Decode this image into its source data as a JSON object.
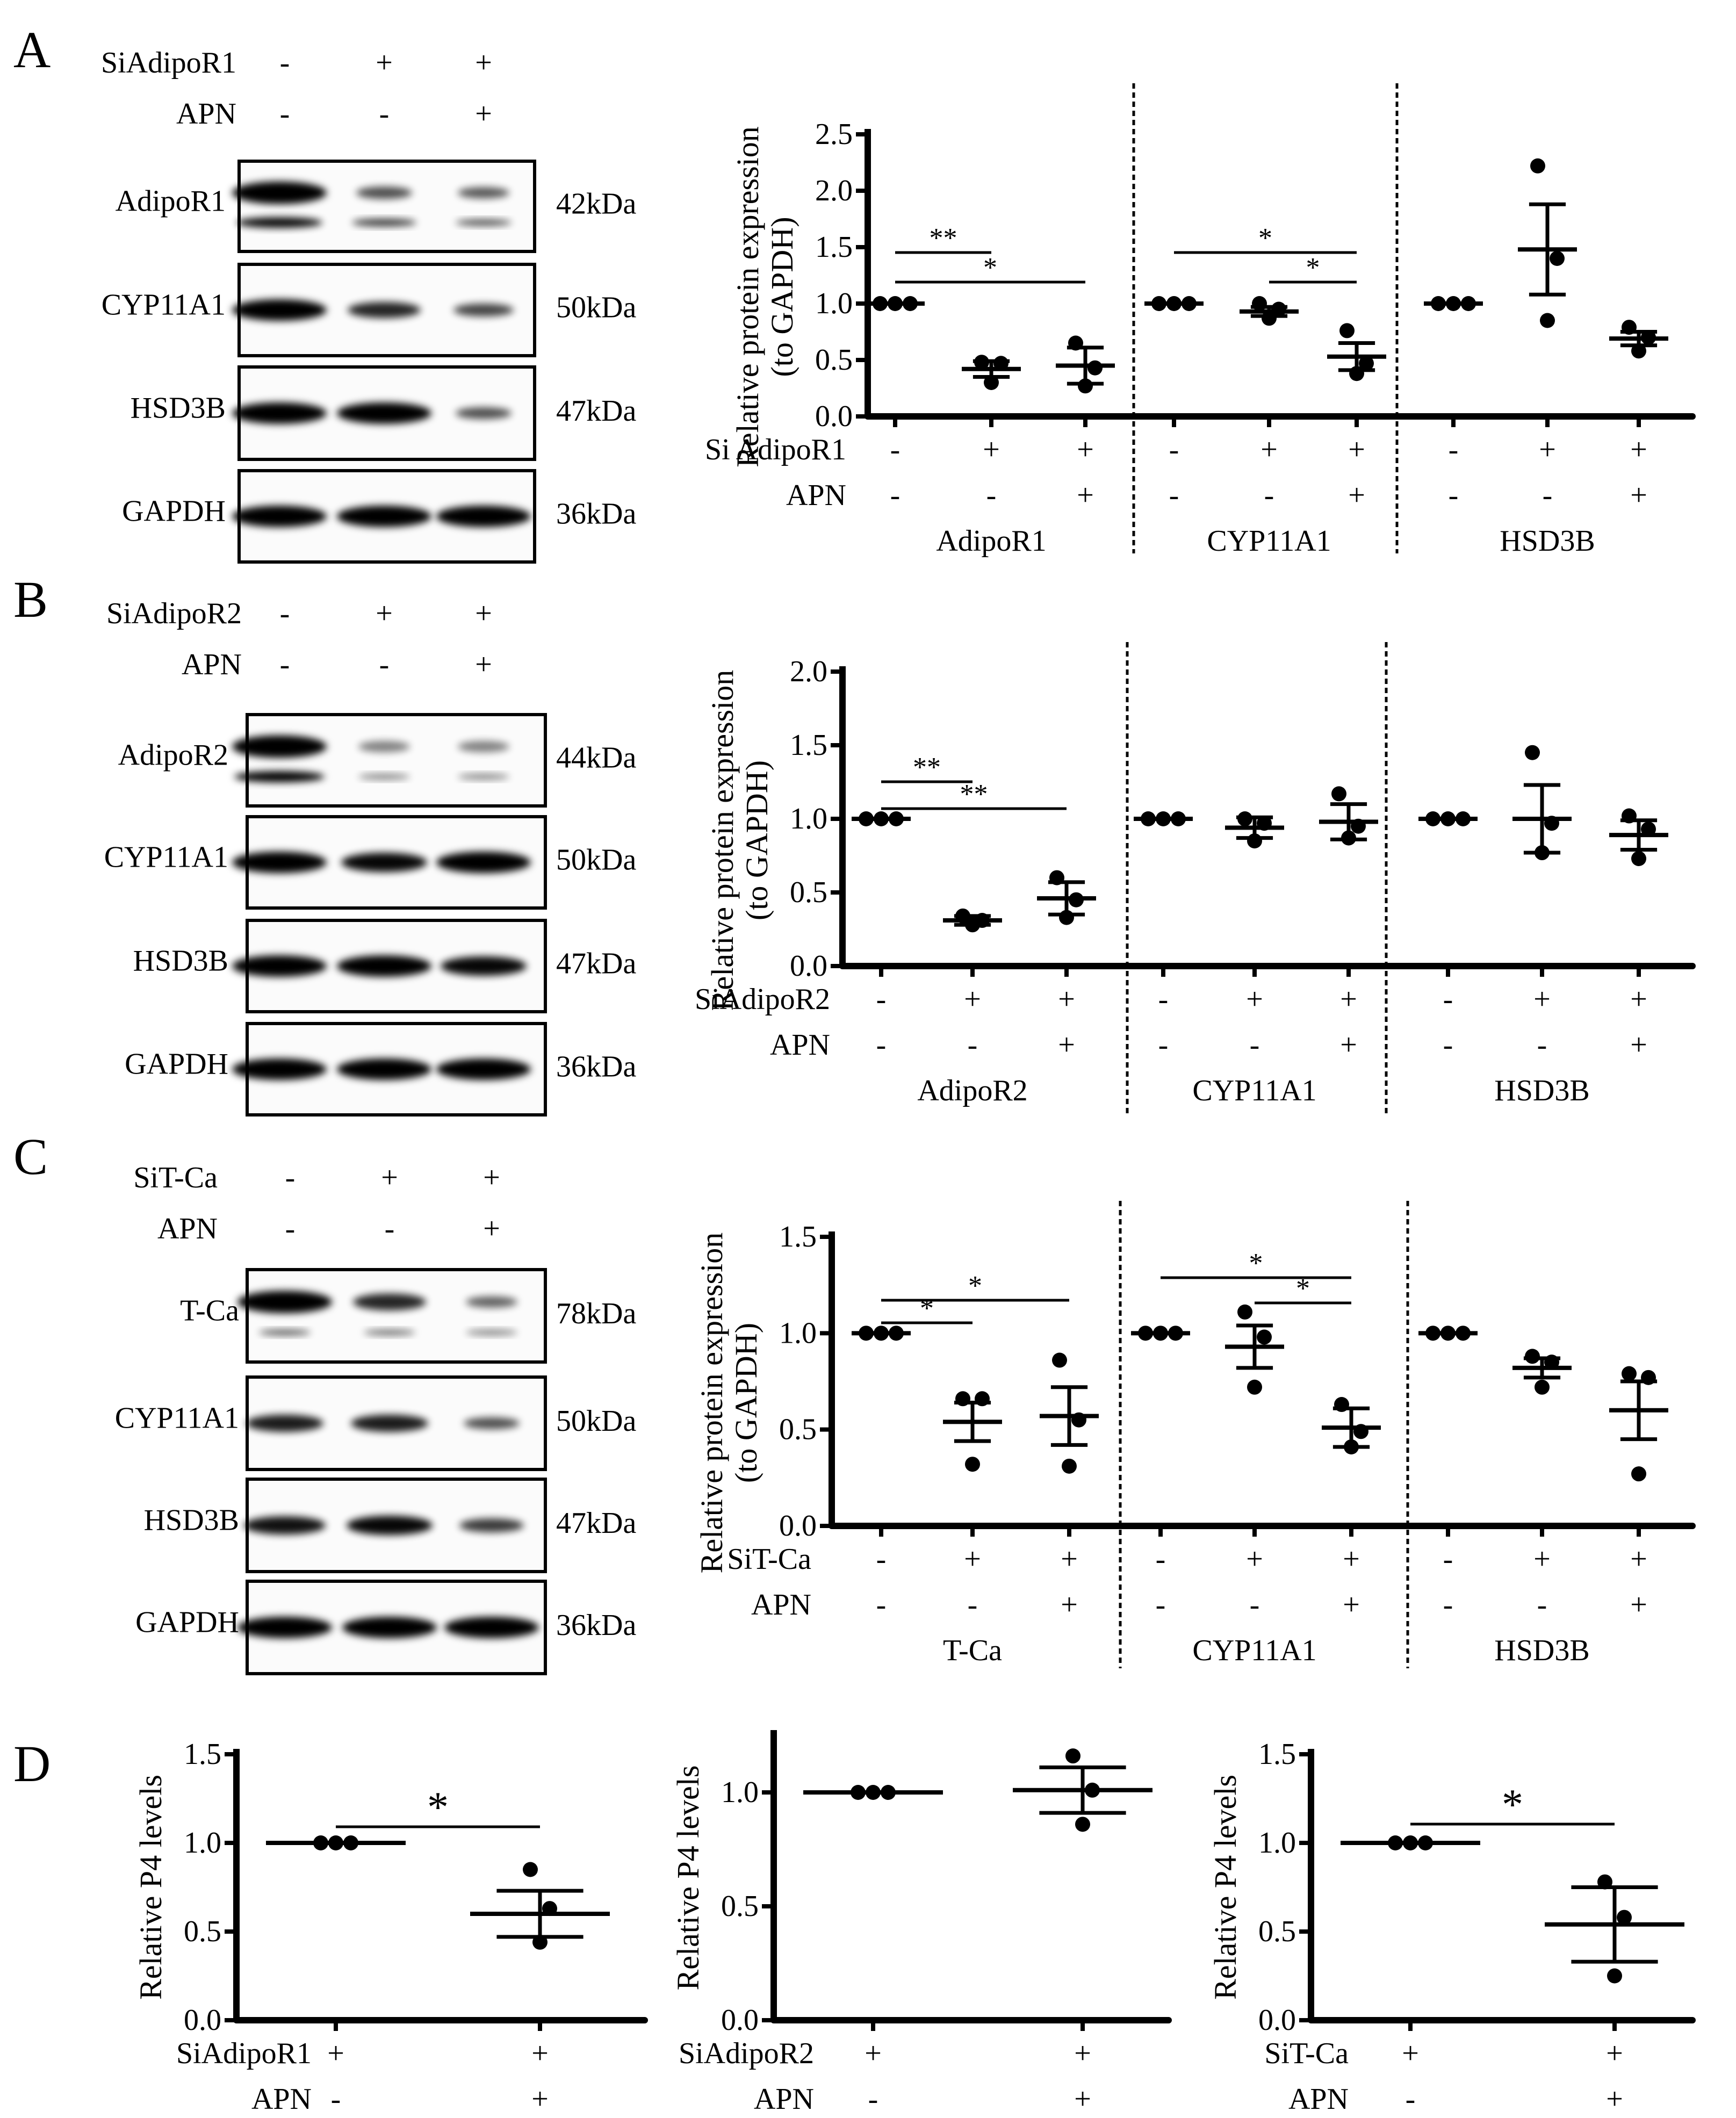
{
  "panels": {
    "A": {
      "letter": "A",
      "conditions": [
        {
          "label": "SiAdipoR1",
          "values": [
            "-",
            "+",
            "+"
          ]
        },
        {
          "label": "APN",
          "values": [
            "-",
            "-",
            "+"
          ]
        }
      ],
      "blots": [
        {
          "protein": "AdipoR1",
          "kda": "42kDa"
        },
        {
          "protein": "CYP11A1",
          "kda": "50kDa"
        },
        {
          "protein": "HSD3B",
          "kda": "47kDa"
        },
        {
          "protein": "GAPDH",
          "kda": "36kDa"
        }
      ]
    },
    "B": {
      "letter": "B",
      "conditions": [
        {
          "label": "SiAdipoR2",
          "values": [
            "-",
            "+",
            "+"
          ]
        },
        {
          "label": "APN",
          "values": [
            "-",
            "-",
            "+"
          ]
        }
      ],
      "blots": [
        {
          "protein": "AdipoR2",
          "kda": "44kDa"
        },
        {
          "protein": "CYP11A1",
          "kda": "50kDa"
        },
        {
          "protein": "HSD3B",
          "kda": "47kDa"
        },
        {
          "protein": "GAPDH",
          "kda": "36kDa"
        }
      ]
    },
    "C": {
      "letter": "C",
      "conditions": [
        {
          "label": "SiT-Ca",
          "values": [
            "-",
            "+",
            "+"
          ]
        },
        {
          "label": "APN",
          "values": [
            "-",
            "-",
            "+"
          ]
        }
      ],
      "blots": [
        {
          "protein": "T-Ca",
          "kda": "78kDa"
        },
        {
          "protein": "CYP11A1",
          "kda": "50kDa"
        },
        {
          "protein": "HSD3B",
          "kda": "47kDa"
        },
        {
          "protein": "GAPDH",
          "kda": "36kDa"
        }
      ]
    },
    "D": {
      "letter": "D"
    }
  },
  "chart_data": [
    {
      "id": "A",
      "type": "scatter",
      "ylabel": "Relative protein expression\n(to GAPDH)",
      "ylim": [
        0,
        2.5
      ],
      "yticks": [
        "0.0",
        "0.5",
        "1.0",
        "1.5",
        "2.0",
        "2.5"
      ],
      "row_labels": [
        "Si AdipoR1",
        "APN"
      ],
      "row_values": [
        [
          "-",
          "+",
          "+",
          "-",
          "+",
          "+",
          "-",
          "+",
          "+"
        ],
        [
          "-",
          "-",
          "+",
          "-",
          "-",
          "+",
          "-",
          "-",
          "+"
        ]
      ],
      "groups": [
        {
          "name": "AdipoR1",
          "means": [
            1.0,
            0.42,
            0.45
          ],
          "sem": [
            0,
            0.07,
            0.16
          ],
          "points": [
            [
              1.0,
              1.0,
              1.0
            ],
            [
              0.48,
              0.47,
              0.3
            ],
            [
              0.65,
              0.43,
              0.27
            ]
          ]
        },
        {
          "name": "CYP11A1",
          "means": [
            1.0,
            0.93,
            0.53
          ],
          "sem": [
            0,
            0.04,
            0.12
          ],
          "points": [
            [
              1.0,
              1.0,
              1.0
            ],
            [
              1.0,
              0.95,
              0.87
            ],
            [
              0.76,
              0.47,
              0.38
            ]
          ]
        },
        {
          "name": "HSD3B",
          "means": [
            1.0,
            1.48,
            0.69
          ],
          "sem": [
            0,
            0.4,
            0.06
          ],
          "points": [
            [
              1.0,
              1.0,
              1.0
            ],
            [
              2.22,
              1.4,
              0.85
            ],
            [
              0.79,
              0.7,
              0.58
            ]
          ]
        }
      ],
      "significance": [
        {
          "group": 0,
          "from": 0,
          "to": 1,
          "label": "**"
        },
        {
          "group": 0,
          "from": 0,
          "to": 2,
          "label": "*"
        },
        {
          "group": 1,
          "from": 0,
          "to": 2,
          "label": "*"
        },
        {
          "group": 1,
          "from": 1,
          "to": 2,
          "label": "*"
        }
      ]
    },
    {
      "id": "B",
      "type": "scatter",
      "ylabel": "Relative protein expression\n(to GAPDH)",
      "ylim": [
        0,
        2.0
      ],
      "yticks": [
        "0.0",
        "0.5",
        "1.0",
        "1.5",
        "2.0"
      ],
      "row_labels": [
        "SiAdipoR2",
        "APN"
      ],
      "row_values": [
        [
          "-",
          "+",
          "+",
          "-",
          "+",
          "+",
          "-",
          "+",
          "+"
        ],
        [
          "-",
          "-",
          "+",
          "-",
          "-",
          "+",
          "-",
          "-",
          "+"
        ]
      ],
      "groups": [
        {
          "name": "AdipoR2",
          "means": [
            1.0,
            0.31,
            0.46
          ],
          "sem": [
            0,
            0.03,
            0.11
          ],
          "points": [
            [
              1.0,
              1.0,
              1.0
            ],
            [
              0.34,
              0.31,
              0.28
            ],
            [
              0.6,
              0.45,
              0.33
            ]
          ]
        },
        {
          "name": "CYP11A1",
          "means": [
            1.0,
            0.94,
            0.98
          ],
          "sem": [
            0,
            0.07,
            0.12
          ],
          "points": [
            [
              1.0,
              1.0,
              1.0
            ],
            [
              1.0,
              0.97,
              0.85
            ],
            [
              1.17,
              0.95,
              0.87
            ]
          ]
        },
        {
          "name": "HSD3B",
          "means": [
            1.0,
            1.0,
            0.89
          ],
          "sem": [
            0,
            0.23,
            0.1
          ],
          "points": [
            [
              1.0,
              1.0,
              1.0
            ],
            [
              1.45,
              0.97,
              0.77
            ],
            [
              1.02,
              0.93,
              0.73
            ]
          ]
        }
      ],
      "significance": [
        {
          "group": 0,
          "from": 0,
          "to": 1,
          "label": "**"
        },
        {
          "group": 0,
          "from": 0,
          "to": 2,
          "label": "**"
        }
      ]
    },
    {
      "id": "C",
      "type": "scatter",
      "ylabel": "Relative protein expression\n(to GAPDH)",
      "ylim": [
        0,
        1.5
      ],
      "yticks": [
        "0.0",
        "0.5",
        "1.0",
        "1.5"
      ],
      "row_labels": [
        "SiT-Ca",
        "APN"
      ],
      "row_values": [
        [
          "-",
          "+",
          "+",
          "-",
          "+",
          "+",
          "-",
          "+",
          "+"
        ],
        [
          "-",
          "-",
          "+",
          "-",
          "-",
          "+",
          "-",
          "-",
          "+"
        ]
      ],
      "groups": [
        {
          "name": "T-Ca",
          "means": [
            1.0,
            0.54,
            0.57
          ],
          "sem": [
            0,
            0.1,
            0.15
          ],
          "points": [
            [
              1.0,
              1.0,
              1.0
            ],
            [
              0.66,
              0.66,
              0.32
            ],
            [
              0.86,
              0.55,
              0.31
            ]
          ]
        },
        {
          "name": "CYP11A1",
          "means": [
            1.0,
            0.93,
            0.51
          ],
          "sem": [
            0,
            0.11,
            0.1
          ],
          "points": [
            [
              1.0,
              1.0,
              1.0
            ],
            [
              1.11,
              0.98,
              0.72
            ],
            [
              0.63,
              0.49,
              0.41
            ]
          ]
        },
        {
          "name": "HSD3B",
          "means": [
            1.0,
            0.82,
            0.6
          ],
          "sem": [
            0,
            0.05,
            0.15
          ],
          "points": [
            [
              1.0,
              1.0,
              1.0
            ],
            [
              0.88,
              0.85,
              0.72
            ],
            [
              0.79,
              0.77,
              0.27
            ]
          ]
        }
      ],
      "significance": [
        {
          "group": 0,
          "from": 0,
          "to": 1,
          "label": "*"
        },
        {
          "group": 0,
          "from": 0,
          "to": 2,
          "label": "*"
        },
        {
          "group": 1,
          "from": 0,
          "to": 2,
          "label": "*"
        },
        {
          "group": 1,
          "from": 1,
          "to": 2,
          "label": "*"
        }
      ]
    },
    {
      "id": "D1",
      "type": "scatter",
      "ylabel": "Relative P4 levels",
      "ylim": [
        0,
        1.5
      ],
      "yticks": [
        "0.0",
        "0.5",
        "1.0",
        "1.5"
      ],
      "row_labels": [
        "SiAdipoR1",
        "APN"
      ],
      "row_values": [
        [
          "+",
          "+"
        ],
        [
          "-",
          "+"
        ]
      ],
      "means": [
        1.0,
        0.6
      ],
      "sem": [
        0,
        0.13
      ],
      "points": [
        [
          1.0,
          1.0,
          1.0
        ],
        [
          0.85,
          0.63,
          0.44
        ]
      ],
      "significance": [
        {
          "from": 0,
          "to": 1,
          "label": "*"
        }
      ]
    },
    {
      "id": "D2",
      "type": "scatter",
      "ylabel": "Relative P4 levels",
      "ylim": [
        0,
        1.25
      ],
      "yticks": [
        "0.0",
        "0.5",
        "1.0"
      ],
      "row_labels": [
        "SiAdipoR2",
        "APN"
      ],
      "row_values": [
        [
          "+",
          "+"
        ],
        [
          "-",
          "+"
        ]
      ],
      "means": [
        1.0,
        1.01
      ],
      "sem": [
        0,
        0.1
      ],
      "points": [
        [
          1.0,
          1.0,
          1.0
        ],
        [
          1.16,
          1.01,
          0.86
        ]
      ],
      "significance": []
    },
    {
      "id": "D3",
      "type": "scatter",
      "ylabel": "Relative P4 levels",
      "ylim": [
        0,
        1.5
      ],
      "yticks": [
        "0.0",
        "0.5",
        "1.0",
        "1.5"
      ],
      "row_labels": [
        "SiT-Ca",
        "APN"
      ],
      "row_values": [
        [
          "+",
          "+"
        ],
        [
          "-",
          "+"
        ]
      ],
      "means": [
        1.0,
        0.54
      ],
      "sem": [
        0,
        0.21
      ],
      "points": [
        [
          1.0,
          1.0,
          1.0
        ],
        [
          0.78,
          0.58,
          0.25
        ]
      ],
      "significance": [
        {
          "from": 0,
          "to": 1,
          "label": "*"
        }
      ]
    }
  ]
}
